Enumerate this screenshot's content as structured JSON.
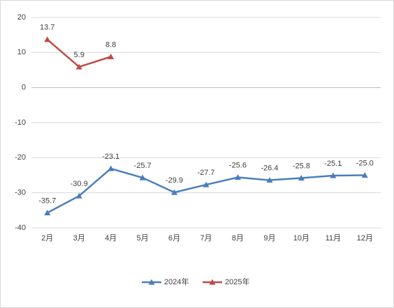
{
  "chart_data": {
    "type": "line",
    "categories": [
      "2月",
      "3月",
      "4月",
      "5月",
      "6月",
      "7月",
      "8月",
      "9月",
      "10月",
      "11月",
      "12月"
    ],
    "series": [
      {
        "name": "2024年",
        "color": "#4a7ebb",
        "values": [
          -35.7,
          -30.9,
          -23.1,
          -25.7,
          -29.9,
          -27.7,
          -25.6,
          -26.4,
          -25.8,
          -25.1,
          -25.0
        ],
        "value_labels": [
          "-35.7",
          "-30.9",
          "-23.1",
          "-25.7",
          "-29.9",
          "-27.7",
          "-25.6",
          "-26.4",
          "-25.8",
          "-25.1",
          "-25.0"
        ]
      },
      {
        "name": "2025年",
        "color": "#be4b48",
        "values": [
          13.7,
          5.9,
          8.8,
          null,
          null,
          null,
          null,
          null,
          null,
          null,
          null
        ],
        "value_labels": [
          "13.7",
          "5.9",
          "8.8",
          null,
          null,
          null,
          null,
          null,
          null,
          null,
          null
        ]
      }
    ],
    "ylim": [
      -40,
      20
    ],
    "yticks": [
      -40,
      -30,
      -20,
      -10,
      0,
      10,
      20
    ],
    "grid": true,
    "legend": "bottom"
  }
}
